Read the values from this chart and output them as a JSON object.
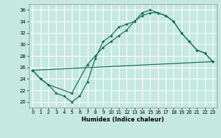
{
  "xlabel": "Humidex (Indice chaleur)",
  "xlim": [
    -0.5,
    23.5
  ],
  "ylim": [
    19.0,
    37.0
  ],
  "yticks": [
    20,
    22,
    24,
    26,
    28,
    30,
    32,
    34,
    36
  ],
  "xticks": [
    0,
    1,
    2,
    3,
    4,
    5,
    6,
    7,
    8,
    9,
    10,
    11,
    12,
    13,
    14,
    15,
    16,
    17,
    18,
    19,
    20,
    21,
    22,
    23
  ],
  "bg_color": "#c5e8e0",
  "grid_color": "#ffffff",
  "line_color": "#1a6b5a",
  "c1x": [
    0,
    1,
    2,
    3,
    4,
    5,
    6,
    7,
    8,
    9,
    10,
    11,
    12,
    13,
    14,
    15,
    16,
    17,
    18,
    19,
    20,
    21,
    22,
    23
  ],
  "c1y": [
    25.5,
    24.0,
    23.0,
    21.5,
    21.0,
    20.0,
    21.0,
    23.5,
    27.5,
    30.5,
    31.5,
    33.0,
    33.5,
    34.0,
    35.5,
    36.0,
    35.5,
    35.0,
    34.0,
    32.0,
    30.5,
    29.0,
    28.5,
    27.0
  ],
  "c2x": [
    0,
    1,
    2,
    5,
    7,
    8,
    9,
    10,
    11,
    12,
    13,
    14,
    15,
    16,
    17,
    18,
    19,
    20,
    21,
    22,
    23
  ],
  "c2y": [
    25.5,
    24.0,
    23.0,
    21.5,
    26.5,
    28.0,
    29.5,
    30.5,
    31.5,
    32.5,
    34.0,
    35.0,
    35.5,
    35.5,
    35.0,
    34.0,
    32.0,
    30.5,
    29.0,
    28.5,
    27.0
  ],
  "c3x": [
    0,
    23
  ],
  "c3y": [
    25.5,
    27.0
  ]
}
